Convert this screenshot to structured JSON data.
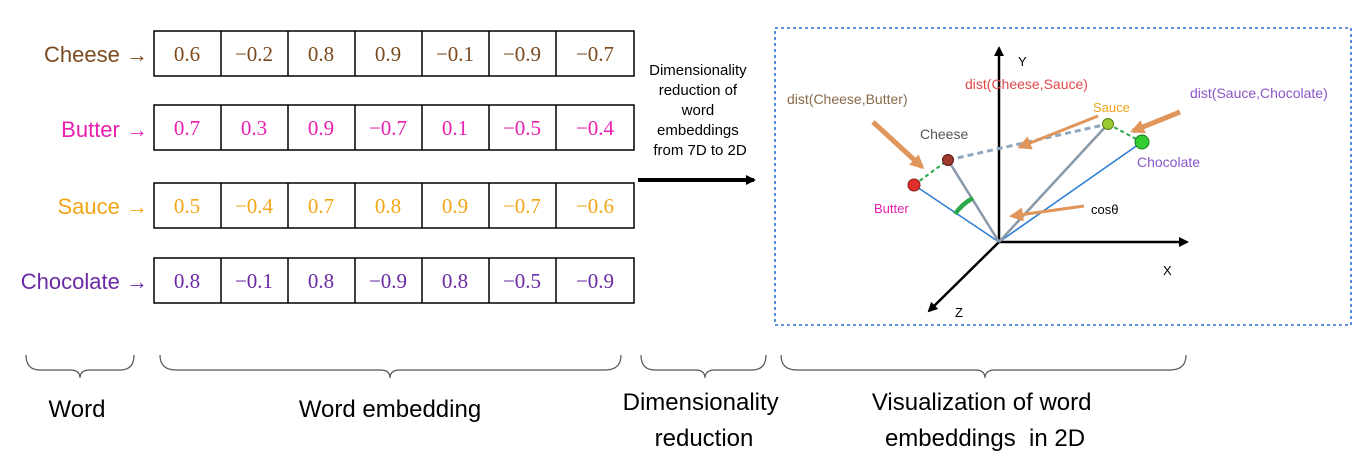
{
  "words": [
    {
      "label": "Cheese",
      "arrow": "→",
      "color": "#7b4a1e",
      "values": [
        "0.6",
        "−0.2",
        "0.8",
        "0.9",
        "−0.1",
        "−0.9",
        "−0.7"
      ]
    },
    {
      "label": "Butter",
      "arrow": "→",
      "color": "#e81fb0",
      "values": [
        "0.7",
        "0.3",
        "0.9",
        "−0.7",
        "0.1",
        "−0.5",
        "−0.4"
      ]
    },
    {
      "label": "Sauce",
      "arrow": "→",
      "color": "#f2a516",
      "values": [
        "0.5",
        "−0.4",
        "0.7",
        "0.8",
        "0.9",
        "−0.7",
        "−0.6"
      ]
    },
    {
      "label": "Chocolate",
      "arrow": "→",
      "color": "#6a2aa5",
      "values": [
        "0.8",
        "−0.1",
        "0.8",
        "−0.9",
        "0.8",
        "−0.5",
        "−0.9"
      ]
    }
  ],
  "reduction_text": [
    "Dimensionality",
    "reduction of",
    "word",
    "embeddings",
    "from 7D to 2D"
  ],
  "plot": {
    "axis_y": "Y",
    "axis_x": "X",
    "axis_z": "Z",
    "points": [
      {
        "name": "Cheese",
        "color": "#a03a2e",
        "label_color": "#555555"
      },
      {
        "name": "Butter",
        "color": "#e0302a",
        "label_color": "#e81fb0"
      },
      {
        "name": "Sauce",
        "color": "#9acd32",
        "label_color": "#f2a516"
      },
      {
        "name": "Chocolate",
        "color": "#33cc33",
        "label_color": "#8a55c8"
      }
    ],
    "dist_cheese_butter": "dist(Cheese,Butter)",
    "dist_cheese_sauce": "dist(Cheese,Sauce)",
    "dist_sauce_chocolate": "dist(Sauce,Chocolate)",
    "cos_label": "cosθ",
    "colors": {
      "dist_cb": "#8a6a4a",
      "dist_cs": "#e04848",
      "dist_sc": "#8a55c8",
      "vec": "#2f7fd6",
      "arrow": "#e0955a"
    }
  },
  "captions": {
    "word": "Word",
    "embedding": "Word embedding",
    "reduction_1": "Dimensionality",
    "reduction_2": "reduction",
    "viz_1": "Visualization of word",
    "viz_2": "embeddings  in 2D"
  }
}
